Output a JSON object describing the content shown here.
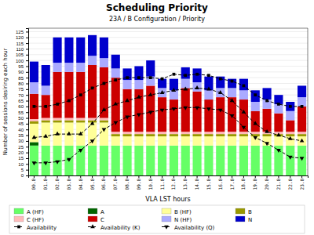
{
  "chart_data": {
    "type": "bar",
    "stacked": true,
    "title": "Scheduling Priority",
    "subtitle": "23A / B Configuration /  Priority",
    "xlabel": "VLA LST hours",
    "ylabel": "Number of sessions desiring each hour",
    "categories": [
      "00.0",
      "01.0",
      "02.0",
      "03.0",
      "04.0",
      "05.0",
      "06.0",
      "07.0",
      "08.0",
      "09.0",
      "10.0",
      "11.0",
      "12.0",
      "13.0",
      "14.0",
      "15.0",
      "16.0",
      "17.0",
      "18.0",
      "19.0",
      "20.0",
      "21.0",
      "22.0",
      "23.0"
    ],
    "series": [
      {
        "name": "A (HF)",
        "type": "bar",
        "color": "#66ff66",
        "values": [
          26,
          26,
          26,
          26,
          26,
          26,
          26,
          26,
          26,
          26,
          26,
          26,
          26,
          26,
          26,
          26,
          26,
          26,
          26,
          26,
          26,
          26,
          26,
          26
        ]
      },
      {
        "name": "A",
        "type": "bar",
        "color": "#006600",
        "values": [
          3,
          0,
          0,
          0,
          0,
          0,
          0,
          0,
          0,
          0,
          0,
          0,
          0,
          0,
          0,
          0,
          0,
          0,
          0,
          0,
          0,
          0,
          0,
          0
        ]
      },
      {
        "name": "B (HF)",
        "type": "bar",
        "color": "#ffff99",
        "values": [
          16,
          20,
          20,
          20,
          20,
          20,
          20,
          8,
          8,
          8,
          8,
          8,
          8,
          8,
          8,
          8,
          8,
          8,
          8,
          8,
          8,
          8,
          8,
          8
        ]
      },
      {
        "name": "B",
        "type": "bar",
        "color": "#999900",
        "values": [
          2,
          2,
          2,
          2,
          2,
          2,
          2,
          2,
          2,
          2,
          2,
          2,
          2,
          2,
          2,
          2,
          2,
          2,
          2,
          2,
          2,
          2,
          2,
          2
        ]
      },
      {
        "name": "C (HF)",
        "type": "bar",
        "color": "#ffbbbb",
        "values": [
          2,
          2,
          2,
          2,
          2,
          2,
          2,
          2,
          2,
          2,
          2,
          2,
          2,
          2,
          2,
          2,
          2,
          2,
          2,
          2,
          2,
          2,
          2,
          2
        ]
      },
      {
        "name": "C",
        "type": "bar",
        "color": "#cc0000",
        "values": [
          22,
          20,
          40,
          40,
          40,
          46,
          44,
          47,
          37,
          37,
          40,
          30,
          28,
          38,
          35,
          28,
          30,
          30,
          28,
          18,
          20,
          16,
          10,
          22
        ]
      },
      {
        "name": "N (HF)",
        "type": "bar",
        "color": "#aaaaff",
        "values": [
          10,
          8,
          8,
          8,
          8,
          8,
          8,
          8,
          8,
          8,
          8,
          8,
          8,
          8,
          8,
          8,
          8,
          8,
          8,
          8,
          8,
          8,
          8,
          8
        ]
      },
      {
        "name": "N",
        "type": "bar",
        "color": "#0000cc",
        "values": [
          18,
          18,
          22,
          22,
          22,
          18,
          18,
          12,
          10,
          12,
          14,
          8,
          10,
          10,
          12,
          12,
          10,
          8,
          10,
          10,
          10,
          8,
          8,
          10
        ]
      },
      {
        "name": "Availability",
        "type": "line",
        "color": "#000000",
        "marker": "square",
        "line_style": "dashed",
        "values": [
          60,
          60,
          62,
          65,
          70,
          76,
          80,
          83,
          85,
          85,
          85,
          84,
          88,
          87,
          88,
          87,
          84,
          82,
          78,
          70,
          65,
          62,
          60,
          60
        ]
      },
      {
        "name": "Availability (K)",
        "type": "line",
        "color": "#000000",
        "marker": "triangle-up",
        "line_style": "dashed",
        "values": [
          33,
          34,
          36,
          36,
          36,
          45,
          57,
          62,
          65,
          68,
          70,
          72,
          74,
          75,
          76,
          75,
          72,
          65,
          55,
          45,
          38,
          35,
          32,
          30
        ]
      },
      {
        "name": "Availability (Q)",
        "type": "line",
        "color": "#000000",
        "marker": "triangle-down",
        "line_style": "dashed",
        "values": [
          11,
          11,
          12,
          14,
          22,
          30,
          40,
          46,
          51,
          53,
          55,
          57,
          58,
          59,
          59,
          58,
          57,
          52,
          42,
          33,
          28,
          22,
          16,
          15
        ]
      }
    ],
    "ylim": [
      0,
      128
    ],
    "yticks": [
      0,
      5,
      10,
      15,
      20,
      25,
      30,
      35,
      40,
      45,
      50,
      55,
      60,
      65,
      70,
      75,
      80,
      85,
      90,
      95,
      100,
      105,
      110,
      115,
      120,
      125
    ],
    "grid": true,
    "legend": "bottom"
  }
}
